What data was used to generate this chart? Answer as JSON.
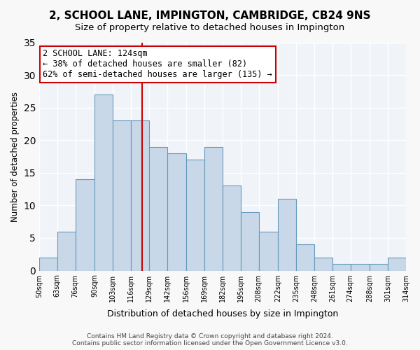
{
  "title": "2, SCHOOL LANE, IMPINGTON, CAMBRIDGE, CB24 9NS",
  "subtitle": "Size of property relative to detached houses in Impington",
  "xlabel": "Distribution of detached houses by size in Impington",
  "ylabel": "Number of detached properties",
  "bar_values": [
    2,
    6,
    14,
    27,
    23,
    23,
    19,
    18,
    17,
    19,
    13,
    9,
    6,
    11,
    4,
    2,
    1,
    1,
    1,
    2
  ],
  "bar_color": "#c8d8e8",
  "bar_edge_color": "#6699bb",
  "vline_x": 124,
  "vline_color": "#cc0000",
  "annotation_text": "2 SCHOOL LANE: 124sqm\n← 38% of detached houses are smaller (82)\n62% of semi-detached houses are larger (135) →",
  "annotation_box_color": "#ffffff",
  "annotation_box_edge": "#cc0000",
  "ylim": [
    0,
    35
  ],
  "yticks": [
    0,
    5,
    10,
    15,
    20,
    25,
    30,
    35
  ],
  "footer_text": "Contains HM Land Registry data © Crown copyright and database right 2024.\nContains public sector information licensed under the Open Government Licence v3.0.",
  "background_color": "#f0f4f8",
  "grid_color": "#ffffff",
  "bin_edges": [
    50,
    63,
    76,
    90,
    103,
    116,
    129,
    142,
    156,
    169,
    182,
    195,
    208,
    222,
    235,
    248,
    261,
    274,
    288,
    301,
    314
  ],
  "tick_labels": [
    "50sqm",
    "63sqm",
    "76sqm",
    "90sqm",
    "103sqm",
    "116sqm",
    "129sqm",
    "142sqm",
    "156sqm",
    "169sqm",
    "182sqm",
    "195sqm",
    "208sqm",
    "222sqm",
    "235sqm",
    "248sqm",
    "261sqm",
    "274sqm",
    "288sqm",
    "301sqm",
    "314sqm"
  ]
}
